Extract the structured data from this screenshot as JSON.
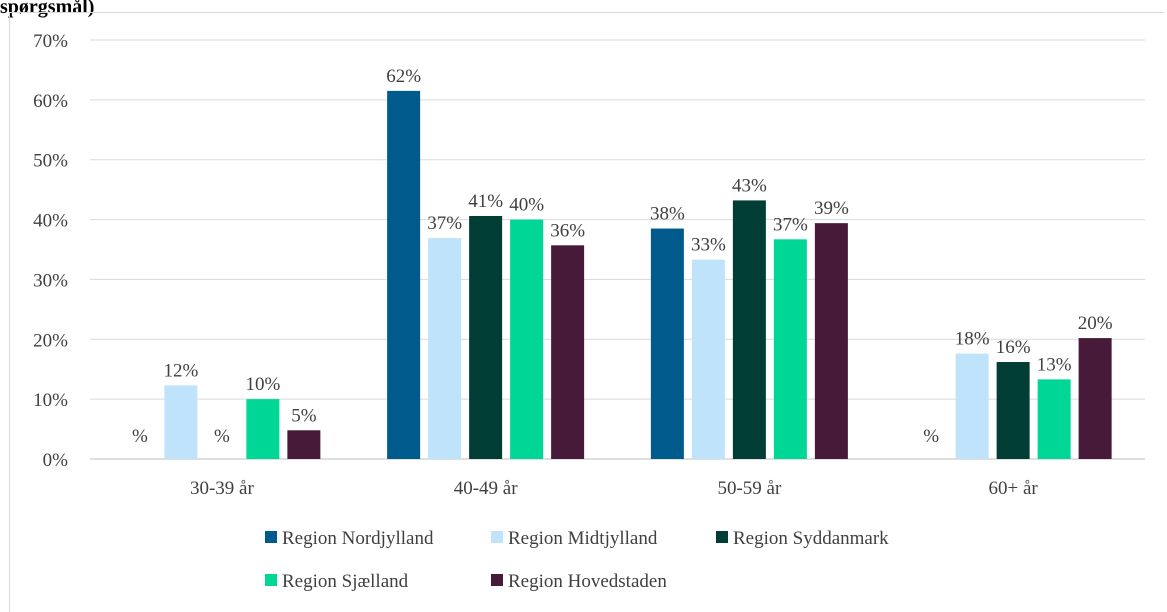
{
  "header": {
    "fragment": "spørgsmål)"
  },
  "chart_data": {
    "type": "bar",
    "title": "",
    "xlabel": "",
    "ylabel": "",
    "ylim": [
      0,
      70
    ],
    "yticks": [
      "0%",
      "10%",
      "20%",
      "30%",
      "40%",
      "50%",
      "60%",
      "70%"
    ],
    "grid": true,
    "legend_position": "bottom",
    "categories": [
      "30-39 år",
      "40-49 år",
      "50-59 år",
      "60+ år"
    ],
    "series": [
      {
        "name": "Region Nordjylland",
        "color": "#005a8c",
        "values": [
          0,
          61.5,
          38.5,
          0
        ],
        "labels": [
          "%",
          "62%",
          "38%",
          "%"
        ]
      },
      {
        "name": "Region Midtjylland",
        "color": "#bfe3fa",
        "values": [
          12.3,
          36.9,
          33.3,
          17.6
        ],
        "labels": [
          "12%",
          "37%",
          "33%",
          "18%"
        ]
      },
      {
        "name": "Region Syddanmark",
        "color": "#003e35",
        "values": [
          0,
          40.6,
          43.2,
          16.2
        ],
        "labels": [
          "%",
          "41%",
          "43%",
          "16%"
        ]
      },
      {
        "name": "Region Sjælland",
        "color": "#00d695",
        "values": [
          10.0,
          40.0,
          36.7,
          13.3
        ],
        "labels": [
          "10%",
          "40%",
          "37%",
          "13%"
        ]
      },
      {
        "name": "Region Hovedstaden",
        "color": "#461a38",
        "values": [
          4.8,
          35.7,
          39.4,
          20.2
        ],
        "labels": [
          "5%",
          "36%",
          "39%",
          "20%"
        ]
      }
    ]
  }
}
